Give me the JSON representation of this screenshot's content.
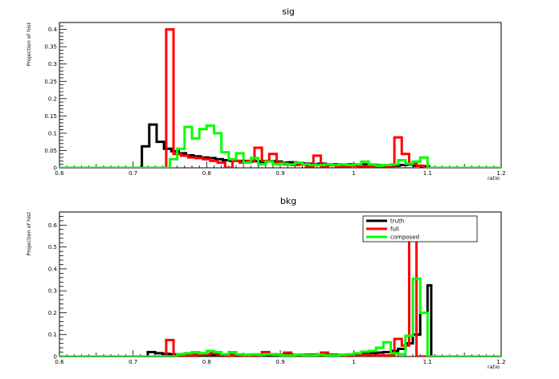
{
  "chart_data": [
    {
      "type": "histogram-step",
      "title": "sig",
      "xlabel": "ratio",
      "ylabel": "Projection of hist",
      "xlim": [
        0.6,
        1.2
      ],
      "ylim": [
        0,
        0.42
      ],
      "xticks": [
        "0.6",
        "0.7",
        "0.8",
        "0.9",
        "1",
        "1.1",
        "1.2"
      ],
      "xtick_values": [
        0.6,
        0.7,
        0.8,
        0.9,
        1.0,
        1.1,
        1.2
      ],
      "yticks": [
        "0",
        "0.05",
        "0.1",
        "0.15",
        "0.2",
        "0.25",
        "0.3",
        "0.35",
        "0.4"
      ],
      "ytick_values": [
        0,
        0.05,
        0.1,
        0.15,
        0.2,
        0.25,
        0.3,
        0.35,
        0.4
      ],
      "grid": false,
      "series": [
        {
          "name": "truth",
          "color": "#000000",
          "x": [
            0.6,
            0.712,
            0.722,
            0.732,
            0.742,
            0.752,
            0.762,
            0.772,
            0.782,
            0.792,
            0.802,
            0.812,
            0.822,
            0.832,
            0.842,
            0.852,
            0.862,
            0.872,
            0.882,
            0.892,
            0.902,
            0.912,
            0.922,
            0.932,
            0.942,
            0.952,
            0.962,
            0.972,
            0.982,
            0.992,
            1.002,
            1.012,
            1.022,
            1.032,
            1.042,
            1.052,
            1.062,
            1.072,
            1.082,
            1.092,
            1.102
          ],
          "values": [
            0,
            0.062,
            0.125,
            0.075,
            0.055,
            0.048,
            0.042,
            0.036,
            0.033,
            0.03,
            0.028,
            0.025,
            0.022,
            0.02,
            0.02,
            0.018,
            0.019,
            0.017,
            0.019,
            0.018,
            0.015,
            0.016,
            0.013,
            0.012,
            0.01,
            0.012,
            0.01,
            0.01,
            0.009,
            0.01,
            0.008,
            0.01,
            0.008,
            0.007,
            0.008,
            0.006,
            0.008,
            0.01,
            0.006,
            0.004,
            0
          ]
        },
        {
          "name": "full",
          "color": "#ff0000",
          "x": [
            0.6,
            0.745,
            0.755,
            0.765,
            0.775,
            0.785,
            0.795,
            0.805,
            0.815,
            0.825,
            0.835,
            0.845,
            0.855,
            0.865,
            0.875,
            0.885,
            0.895,
            0.905,
            0.915,
            0.925,
            0.935,
            0.945,
            0.955,
            0.965,
            0.975,
            0.985,
            0.995,
            1.005,
            1.015,
            1.025,
            1.035,
            1.045,
            1.055,
            1.065,
            1.075,
            1.085,
            1.095
          ],
          "values": [
            0,
            0.4,
            0.04,
            0.035,
            0.03,
            0.028,
            0.025,
            0.02,
            0.015,
            0.0,
            0.02,
            0.015,
            0.02,
            0.058,
            0.02,
            0.04,
            0.015,
            0.01,
            0.008,
            0.01,
            0.005,
            0.035,
            0.005,
            0.008,
            0.005,
            0.005,
            0.006,
            0.005,
            0.005,
            0.005,
            0.005,
            0.005,
            0.088,
            0.04,
            0.012,
            0.006,
            0
          ]
        },
        {
          "name": "composed",
          "color": "#00ff00",
          "x": [
            0.6,
            0.75,
            0.76,
            0.77,
            0.78,
            0.79,
            0.8,
            0.81,
            0.82,
            0.83,
            0.84,
            0.85,
            0.86,
            0.87,
            0.88,
            0.89,
            0.9,
            0.91,
            0.92,
            0.93,
            0.94,
            0.95,
            0.96,
            0.97,
            0.98,
            0.99,
            1.0,
            1.01,
            1.02,
            1.03,
            1.04,
            1.05,
            1.06,
            1.07,
            1.08,
            1.09,
            1.1
          ],
          "values": [
            0,
            0.025,
            0.055,
            0.118,
            0.085,
            0.112,
            0.122,
            0.1,
            0.045,
            0.025,
            0.042,
            0.015,
            0.028,
            0.01,
            0.018,
            0.01,
            0.012,
            0.01,
            0.015,
            0.01,
            0.008,
            0.008,
            0.01,
            0.008,
            0.01,
            0.008,
            0.01,
            0.018,
            0.01,
            0.006,
            0.008,
            0.01,
            0.022,
            0.012,
            0.018,
            0.03,
            0
          ]
        }
      ]
    },
    {
      "type": "histogram-step",
      "title": "bkg",
      "xlabel": "ratio",
      "ylabel": "Projection of hist",
      "xlim": [
        0.6,
        1.2
      ],
      "ylim": [
        0,
        0.66
      ],
      "xticks": [
        "0.6",
        "0.7",
        "0.8",
        "0.9",
        "1",
        "1.1",
        "1.2"
      ],
      "xtick_values": [
        0.6,
        0.7,
        0.8,
        0.9,
        1.0,
        1.1,
        1.2
      ],
      "yticks": [
        "0",
        "0.1",
        "0.2",
        "0.3",
        "0.4",
        "0.5",
        "0.6"
      ],
      "ytick_values": [
        0,
        0.1,
        0.2,
        0.3,
        0.4,
        0.5,
        0.6
      ],
      "grid": false,
      "legend": {
        "position": "top-right",
        "entries": [
          "truth",
          "full",
          "composed"
        ]
      },
      "series": [
        {
          "name": "truth",
          "color": "#000000",
          "x": [
            0.6,
            0.72,
            0.73,
            0.74,
            0.75,
            0.76,
            0.77,
            0.78,
            0.79,
            0.8,
            0.81,
            0.82,
            0.83,
            0.84,
            0.85,
            0.86,
            0.87,
            0.88,
            0.89,
            0.9,
            0.91,
            0.92,
            0.93,
            0.94,
            0.95,
            0.96,
            0.97,
            0.98,
            0.99,
            1.0,
            1.01,
            1.02,
            1.03,
            1.04,
            1.05,
            1.06,
            1.07,
            1.08,
            1.09,
            1.1,
            1.105
          ],
          "values": [
            0,
            0.02,
            0.015,
            0.012,
            0.01,
            0.01,
            0.008,
            0.008,
            0.008,
            0.008,
            0.008,
            0.008,
            0.008,
            0.008,
            0.008,
            0.008,
            0.008,
            0.008,
            0.008,
            0.008,
            0.008,
            0.008,
            0.008,
            0.008,
            0.008,
            0.008,
            0.008,
            0.008,
            0.008,
            0.01,
            0.012,
            0.015,
            0.018,
            0.02,
            0.025,
            0.035,
            0.06,
            0.1,
            0.2,
            0.325,
            0
          ]
        },
        {
          "name": "full",
          "color": "#ff0000",
          "x": [
            0.6,
            0.745,
            0.755,
            0.765,
            0.775,
            0.785,
            0.795,
            0.805,
            0.815,
            0.825,
            0.835,
            0.845,
            0.855,
            0.865,
            0.875,
            0.885,
            0.895,
            0.905,
            0.915,
            0.925,
            0.935,
            0.945,
            0.955,
            0.965,
            0.975,
            0.985,
            0.995,
            1.005,
            1.015,
            1.025,
            1.035,
            1.045,
            1.055,
            1.065,
            1.075,
            1.085
          ],
          "values": [
            0,
            0.075,
            0.005,
            0.005,
            0.005,
            0.008,
            0.01,
            0.015,
            0.008,
            0.005,
            0.008,
            0.005,
            0.005,
            0.005,
            0.02,
            0.01,
            0.008,
            0.018,
            0.005,
            0.008,
            0.005,
            0.005,
            0.018,
            0.005,
            0.005,
            0.005,
            0.005,
            0.005,
            0.008,
            0.005,
            0.005,
            0.005,
            0.08,
            0.05,
            0.55,
            0
          ]
        },
        {
          "name": "composed",
          "color": "#00ff00",
          "x": [
            0.6,
            0.76,
            0.77,
            0.78,
            0.79,
            0.8,
            0.81,
            0.82,
            0.83,
            0.84,
            0.85,
            0.86,
            0.87,
            0.88,
            0.89,
            0.9,
            0.91,
            0.92,
            0.93,
            0.94,
            0.95,
            0.96,
            0.97,
            0.98,
            0.99,
            1.0,
            1.01,
            1.02,
            1.03,
            1.04,
            1.05,
            1.06,
            1.07,
            1.08,
            1.09,
            1.1
          ],
          "values": [
            0,
            0.01,
            0.015,
            0.02,
            0.015,
            0.025,
            0.02,
            0.01,
            0.02,
            0.01,
            0.008,
            0.01,
            0.008,
            0.01,
            0.008,
            0.005,
            0.005,
            0.008,
            0.005,
            0.005,
            0.008,
            0.005,
            0.005,
            0.008,
            0.01,
            0.015,
            0.022,
            0.025,
            0.04,
            0.065,
            0.015,
            0.01,
            0.095,
            0.355,
            0.2,
            0
          ]
        }
      ]
    }
  ]
}
